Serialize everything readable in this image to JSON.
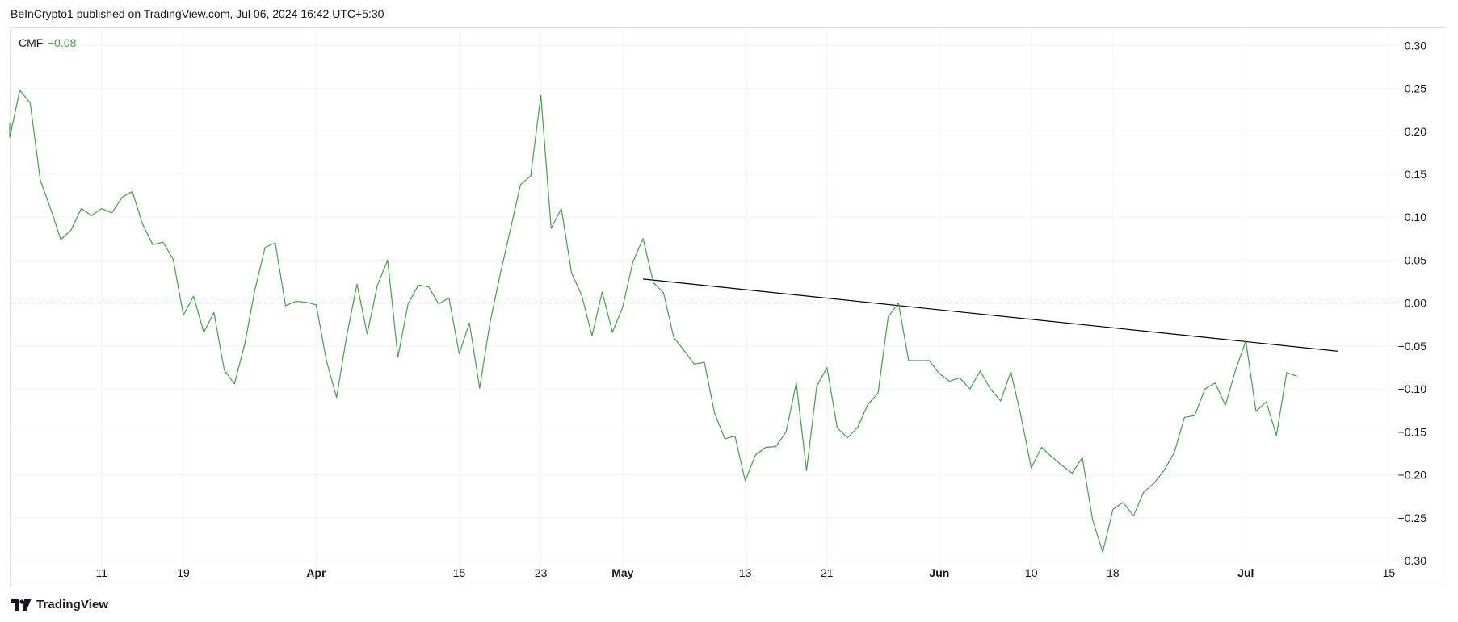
{
  "header": {
    "published_text": "BeInCrypto1 published on TradingView.com, Jul 06, 2024 16:42 UTC+5:30"
  },
  "footer": {
    "brand": "TradingView"
  },
  "colors": {
    "series": "#43a047",
    "trendline": "#000000",
    "zero_line": "#9598a1",
    "grid": "#f0f3fa",
    "border": "#e0e3eb"
  },
  "chart_data": {
    "type": "line",
    "indicator": {
      "name": "CMF",
      "current_value_label": "−0.08"
    },
    "ylim": [
      -0.33,
      0.32
    ],
    "yticks": [
      0.3,
      0.25,
      0.2,
      0.15,
      0.1,
      0.05,
      0.0,
      -0.05,
      -0.1,
      -0.15,
      -0.2,
      -0.25,
      -0.3
    ],
    "ytick_labels": [
      "0.30",
      "0.25",
      "0.20",
      "0.15",
      "0.10",
      "0.05",
      "0.00",
      "−0.05",
      "−0.10",
      "−0.15",
      "−0.20",
      "−0.25",
      "−0.30"
    ],
    "xlim": [
      "2024-03-02",
      "2024-07-16"
    ],
    "xticks": [
      {
        "label": "11",
        "date": "2024-03-11",
        "bold": false
      },
      {
        "label": "19",
        "date": "2024-03-19",
        "bold": false
      },
      {
        "label": "Apr",
        "date": "2024-04-01",
        "bold": true
      },
      {
        "label": "15",
        "date": "2024-04-15",
        "bold": false
      },
      {
        "label": "23",
        "date": "2024-04-23",
        "bold": false
      },
      {
        "label": "May",
        "date": "2024-05-01",
        "bold": true
      },
      {
        "label": "13",
        "date": "2024-05-13",
        "bold": false
      },
      {
        "label": "21",
        "date": "2024-05-21",
        "bold": false
      },
      {
        "label": "Jun",
        "date": "2024-06-01",
        "bold": true
      },
      {
        "label": "10",
        "date": "2024-06-10",
        "bold": false
      },
      {
        "label": "18",
        "date": "2024-06-18",
        "bold": false
      },
      {
        "label": "Jul",
        "date": "2024-07-01",
        "bold": true
      },
      {
        "label": "15",
        "date": "2024-07-15",
        "bold": false
      }
    ],
    "zero_line": {
      "y": 0.0,
      "style": "dashed"
    },
    "grid": true,
    "series": [
      {
        "x": [
          "2024-03-02",
          "2024-03-02",
          "2024-03-03",
          "2024-03-04",
          "2024-03-05",
          "2024-03-06",
          "2024-03-07",
          "2024-03-08",
          "2024-03-09",
          "2024-03-10",
          "2024-03-11",
          "2024-03-12",
          "2024-03-13",
          "2024-03-14",
          "2024-03-15",
          "2024-03-16",
          "2024-03-17",
          "2024-03-18",
          "2024-03-19",
          "2024-03-20",
          "2024-03-21",
          "2024-03-22",
          "2024-03-23",
          "2024-03-24",
          "2024-03-25",
          "2024-03-26",
          "2024-03-27",
          "2024-03-28",
          "2024-03-29",
          "2024-03-30",
          "2024-03-31",
          "2024-04-01",
          "2024-04-02",
          "2024-04-03",
          "2024-04-04",
          "2024-04-05",
          "2024-04-06",
          "2024-04-07",
          "2024-04-08",
          "2024-04-09",
          "2024-04-10",
          "2024-04-11",
          "2024-04-12",
          "2024-04-13",
          "2024-04-14",
          "2024-04-15",
          "2024-04-16",
          "2024-04-17",
          "2024-04-18",
          "2024-04-19",
          "2024-04-20",
          "2024-04-21",
          "2024-04-22",
          "2024-04-23",
          "2024-04-24",
          "2024-04-25",
          "2024-04-26",
          "2024-04-27",
          "2024-04-28",
          "2024-04-29",
          "2024-04-30",
          "2024-05-01",
          "2024-05-02",
          "2024-05-03",
          "2024-05-04",
          "2024-05-05",
          "2024-05-06",
          "2024-05-07",
          "2024-05-08",
          "2024-05-09",
          "2024-05-10",
          "2024-05-11",
          "2024-05-12",
          "2024-05-13",
          "2024-05-14",
          "2024-05-15",
          "2024-05-16",
          "2024-05-17",
          "2024-05-18",
          "2024-05-19",
          "2024-05-20",
          "2024-05-21",
          "2024-05-22",
          "2024-05-23",
          "2024-05-24",
          "2024-05-25",
          "2024-05-26",
          "2024-05-27",
          "2024-05-28",
          "2024-05-29",
          "2024-05-30",
          "2024-05-31",
          "2024-06-01",
          "2024-06-02",
          "2024-06-03",
          "2024-06-04",
          "2024-06-05",
          "2024-06-06",
          "2024-06-07",
          "2024-06-08",
          "2024-06-09",
          "2024-06-10",
          "2024-06-11",
          "2024-06-12",
          "2024-06-13",
          "2024-06-14",
          "2024-06-15",
          "2024-06-16",
          "2024-06-17",
          "2024-06-18",
          "2024-06-19",
          "2024-06-20",
          "2024-06-21",
          "2024-06-22",
          "2024-06-23",
          "2024-06-24",
          "2024-06-25",
          "2024-06-26",
          "2024-06-27",
          "2024-06-28",
          "2024-06-29",
          "2024-06-30",
          "2024-07-01",
          "2024-07-02",
          "2024-07-03",
          "2024-07-04",
          "2024-07-05",
          "2024-07-06"
        ],
        "y": [
          0.21,
          0.193,
          0.248,
          0.233,
          0.143,
          0.11,
          0.074,
          0.085,
          0.11,
          0.102,
          0.11,
          0.105,
          0.123,
          0.13,
          0.092,
          0.068,
          0.071,
          0.051,
          -0.014,
          0.008,
          -0.034,
          -0.011,
          -0.078,
          -0.094,
          -0.048,
          0.015,
          0.065,
          0.07,
          -0.003,
          0.002,
          0.001,
          -0.002,
          -0.067,
          -0.11,
          -0.037,
          0.022,
          -0.036,
          0.021,
          0.05,
          -0.063,
          -0.001,
          0.021,
          0.019,
          -0.001,
          0.006,
          -0.059,
          -0.023,
          -0.099,
          -0.024,
          0.033,
          0.085,
          0.138,
          0.148,
          0.242,
          0.087,
          0.11,
          0.035,
          0.009,
          -0.038,
          0.013,
          -0.034,
          -0.005,
          0.048,
          0.075,
          0.024,
          0.012,
          -0.04,
          -0.055,
          -0.071,
          -0.069,
          -0.128,
          -0.158,
          -0.155,
          -0.207,
          -0.177,
          -0.168,
          -0.167,
          -0.15,
          -0.093,
          -0.195,
          -0.097,
          -0.075,
          -0.145,
          -0.157,
          -0.145,
          -0.118,
          -0.105,
          -0.016,
          0.0,
          -0.067,
          -0.067,
          -0.067,
          -0.082,
          -0.091,
          -0.087,
          -0.1,
          -0.079,
          -0.1,
          -0.114,
          -0.08,
          -0.132,
          -0.192,
          -0.168,
          -0.179,
          -0.189,
          -0.198,
          -0.18,
          -0.252,
          -0.29,
          -0.24,
          -0.232,
          -0.248,
          -0.22,
          -0.21,
          -0.195,
          -0.174,
          -0.133,
          -0.131,
          -0.1,
          -0.093,
          -0.119,
          -0.078,
          -0.044,
          -0.126,
          -0.115,
          -0.154,
          -0.081,
          -0.085
        ]
      }
    ],
    "trendline": {
      "start": {
        "x": "2024-05-03",
        "y": 0.028
      },
      "end": {
        "x": "2024-07-10",
        "y": -0.056
      }
    }
  }
}
